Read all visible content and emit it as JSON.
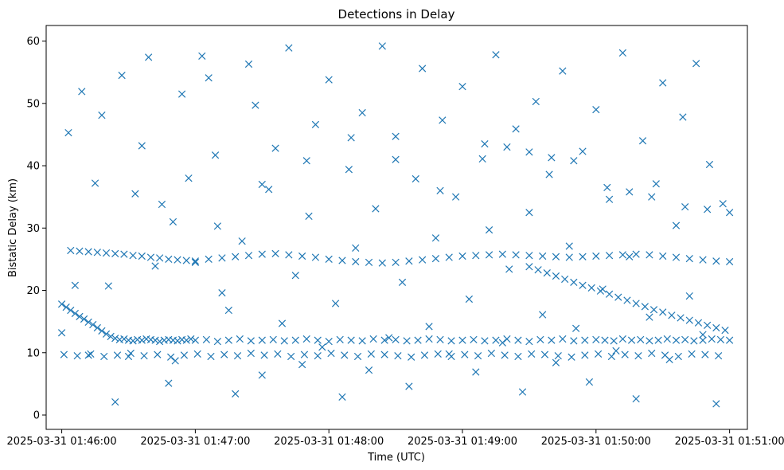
{
  "chart_data": {
    "type": "scatter",
    "title": "Detections in Delay",
    "xlabel": "Time (UTC)",
    "ylabel": "Bistatic Delay (km)",
    "x_ticks": [
      "2025-03-31 01:46:00",
      "2025-03-31 01:47:00",
      "2025-03-31 01:48:00",
      "2025-03-31 01:49:00",
      "2025-03-31 01:50:00",
      "2025-03-31 01:51:00"
    ],
    "y_ticks": [
      "0",
      "10",
      "20",
      "30",
      "40",
      "50",
      "60"
    ],
    "xlim": [
      "2025-03-31 01:45:53",
      "2025-03-31 01:51:08"
    ],
    "ylim": [
      -2.3,
      62.5
    ],
    "grid": false,
    "marker": "x",
    "color": "#1f77b4",
    "series": [
      {
        "x": [
          "2025-03-31 01:46:00",
          "2025-03-31 01:46:02",
          "2025-03-31 01:46:04",
          "2025-03-31 01:46:06",
          "2025-03-31 01:46:08",
          "2025-03-31 01:46:10",
          "2025-03-31 01:46:12",
          "2025-03-31 01:46:14",
          "2025-03-31 01:46:16",
          "2025-03-31 01:46:18",
          "2025-03-31 01:46:20",
          "2025-03-31 01:46:22",
          "2025-03-31 01:46:24",
          "2025-03-31 01:46:26",
          "2025-03-31 01:46:28",
          "2025-03-31 01:46:30",
          "2025-03-31 01:46:32",
          "2025-03-31 01:46:34",
          "2025-03-31 01:46:36",
          "2025-03-31 01:46:38",
          "2025-03-31 01:46:40",
          "2025-03-31 01:46:42",
          "2025-03-31 01:46:44",
          "2025-03-31 01:46:46",
          "2025-03-31 01:46:48",
          "2025-03-31 01:46:50",
          "2025-03-31 01:46:52",
          "2025-03-31 01:46:54",
          "2025-03-31 01:46:56",
          "2025-03-31 01:46:58",
          "2025-03-31 01:47:00",
          "2025-03-31 01:47:05",
          "2025-03-31 01:47:10",
          "2025-03-31 01:47:15",
          "2025-03-31 01:47:20",
          "2025-03-31 01:47:25",
          "2025-03-31 01:47:30",
          "2025-03-31 01:47:35",
          "2025-03-31 01:47:40",
          "2025-03-31 01:47:45",
          "2025-03-31 01:47:50",
          "2025-03-31 01:47:55",
          "2025-03-31 01:48:00",
          "2025-03-31 01:48:05",
          "2025-03-31 01:48:10",
          "2025-03-31 01:48:15",
          "2025-03-31 01:48:20",
          "2025-03-31 01:48:25",
          "2025-03-31 01:48:30",
          "2025-03-31 01:48:35",
          "2025-03-31 01:48:40",
          "2025-03-31 01:48:45",
          "2025-03-31 01:48:50",
          "2025-03-31 01:48:55",
          "2025-03-31 01:49:00",
          "2025-03-31 01:49:05",
          "2025-03-31 01:49:10",
          "2025-03-31 01:49:15",
          "2025-03-31 01:49:20",
          "2025-03-31 01:49:25",
          "2025-03-31 01:49:30",
          "2025-03-31 01:49:35",
          "2025-03-31 01:49:40",
          "2025-03-31 01:49:45",
          "2025-03-31 01:49:50",
          "2025-03-31 01:49:55",
          "2025-03-31 01:50:00",
          "2025-03-31 01:50:04",
          "2025-03-31 01:50:08",
          "2025-03-31 01:50:12",
          "2025-03-31 01:50:16",
          "2025-03-31 01:50:20",
          "2025-03-31 01:50:24",
          "2025-03-31 01:50:28",
          "2025-03-31 01:50:32",
          "2025-03-31 01:50:36",
          "2025-03-31 01:50:40",
          "2025-03-31 01:50:44",
          "2025-03-31 01:50:48",
          "2025-03-31 01:50:52",
          "2025-03-31 01:50:56",
          "2025-03-31 01:51:00"
        ],
        "y": [
          17.8,
          17.3,
          16.8,
          16.3,
          15.8,
          15.4,
          14.9,
          14.5,
          14.0,
          13.5,
          13.0,
          12.6,
          12.3,
          12.1,
          12.2,
          12.0,
          11.9,
          12.1,
          12.0,
          12.2,
          12.1,
          12.0,
          11.8,
          12.0,
          12.1,
          12.0,
          11.9,
          12.1,
          12.0,
          12.2,
          12.0,
          12.1,
          11.8,
          12.0,
          12.2,
          11.9,
          12.0,
          12.1,
          11.9,
          12.0,
          12.2,
          12.0,
          11.8,
          12.1,
          12.0,
          11.9,
          12.2,
          12.0,
          12.1,
          11.9,
          12.0,
          12.2,
          12.1,
          11.9,
          12.0,
          12.1,
          11.9,
          12.0,
          12.2,
          12.0,
          11.8,
          12.1,
          12.0,
          12.2,
          11.9,
          12.0,
          12.1,
          12.0,
          11.9,
          12.2,
          12.0,
          12.1,
          11.9,
          12.0,
          12.2,
          12.0,
          12.1,
          11.9,
          12.0,
          12.2,
          12.1,
          12.0
        ]
      },
      {
        "x": [
          "2025-03-31 01:46:04",
          "2025-03-31 01:46:08",
          "2025-03-31 01:46:12",
          "2025-03-31 01:46:16",
          "2025-03-31 01:46:20",
          "2025-03-31 01:46:24",
          "2025-03-31 01:46:28",
          "2025-03-31 01:46:32",
          "2025-03-31 01:46:36",
          "2025-03-31 01:46:40",
          "2025-03-31 01:46:44",
          "2025-03-31 01:46:48",
          "2025-03-31 01:46:52",
          "2025-03-31 01:46:56",
          "2025-03-31 01:47:00",
          "2025-03-31 01:47:06",
          "2025-03-31 01:47:12",
          "2025-03-31 01:47:18",
          "2025-03-31 01:47:24",
          "2025-03-31 01:47:30",
          "2025-03-31 01:47:36",
          "2025-03-31 01:47:42",
          "2025-03-31 01:47:48",
          "2025-03-31 01:47:54",
          "2025-03-31 01:48:00",
          "2025-03-31 01:48:06",
          "2025-03-31 01:48:12",
          "2025-03-31 01:48:18",
          "2025-03-31 01:48:24",
          "2025-03-31 01:48:30",
          "2025-03-31 01:48:36",
          "2025-03-31 01:48:42",
          "2025-03-31 01:48:48",
          "2025-03-31 01:48:54",
          "2025-03-31 01:49:00",
          "2025-03-31 01:49:06",
          "2025-03-31 01:49:12",
          "2025-03-31 01:49:18",
          "2025-03-31 01:49:24",
          "2025-03-31 01:49:30",
          "2025-03-31 01:49:36",
          "2025-03-31 01:49:42",
          "2025-03-31 01:49:48",
          "2025-03-31 01:49:54",
          "2025-03-31 01:50:00",
          "2025-03-31 01:50:06",
          "2025-03-31 01:50:12",
          "2025-03-31 01:50:18",
          "2025-03-31 01:50:24",
          "2025-03-31 01:50:30",
          "2025-03-31 01:50:36",
          "2025-03-31 01:50:42",
          "2025-03-31 01:50:48",
          "2025-03-31 01:50:54",
          "2025-03-31 01:51:00"
        ],
        "y": [
          26.4,
          26.3,
          26.2,
          26.1,
          26.0,
          25.9,
          25.8,
          25.6,
          25.5,
          25.3,
          25.2,
          25.0,
          24.9,
          24.8,
          24.7,
          25.0,
          25.2,
          25.4,
          25.6,
          25.8,
          25.9,
          25.7,
          25.5,
          25.3,
          25.0,
          24.8,
          24.6,
          24.5,
          24.4,
          24.5,
          24.7,
          24.9,
          25.1,
          25.3,
          25.5,
          25.6,
          25.7,
          25.8,
          25.7,
          25.6,
          25.5,
          25.4,
          25.3,
          25.4,
          25.5,
          25.6,
          25.7,
          25.8,
          25.7,
          25.5,
          25.3,
          25.1,
          24.9,
          24.7,
          24.6
        ]
      },
      {
        "x": [
          "2025-03-31 01:49:30",
          "2025-03-31 01:49:34",
          "2025-03-31 01:49:38",
          "2025-03-31 01:49:42",
          "2025-03-31 01:49:46",
          "2025-03-31 01:49:50",
          "2025-03-31 01:49:54",
          "2025-03-31 01:49:58",
          "2025-03-31 01:50:02",
          "2025-03-31 01:50:06",
          "2025-03-31 01:50:10",
          "2025-03-31 01:50:14",
          "2025-03-31 01:50:18",
          "2025-03-31 01:50:22",
          "2025-03-31 01:50:26",
          "2025-03-31 01:50:30",
          "2025-03-31 01:50:34",
          "2025-03-31 01:50:38",
          "2025-03-31 01:50:42",
          "2025-03-31 01:50:46",
          "2025-03-31 01:50:50",
          "2025-03-31 01:50:54",
          "2025-03-31 01:50:58"
        ],
        "y": [
          23.8,
          23.3,
          22.8,
          22.3,
          21.8,
          21.3,
          20.8,
          20.4,
          19.9,
          19.4,
          18.9,
          18.4,
          17.9,
          17.4,
          16.9,
          16.5,
          16.0,
          15.6,
          15.2,
          14.8,
          14.4,
          14.0,
          13.6
        ]
      },
      {
        "x": [
          "2025-03-31 01:46:50",
          "2025-03-31 01:47:10",
          "2025-03-31 01:47:30",
          "2025-03-31 01:47:50",
          "2025-03-31 01:48:10",
          "2025-03-31 01:48:30",
          "2025-03-31 01:48:50",
          "2025-03-31 01:49:10",
          "2025-03-31 01:49:20",
          "2025-03-31 01:49:30",
          "2025-03-31 01:49:40",
          "2025-03-31 01:49:50",
          "2025-03-31 01:50:05",
          "2025-03-31 01:50:15",
          "2025-03-31 01:50:25",
          "2025-03-31 01:50:40",
          "2025-03-31 01:50:50",
          "2025-03-31 01:51:00"
        ],
        "y": [
          31.0,
          30.3,
          37.0,
          40.8,
          44.5,
          41.0,
          36.0,
          43.5,
          43.0,
          42.2,
          41.3,
          40.8,
          36.5,
          35.8,
          35.0,
          33.4,
          33.0,
          32.5
        ]
      },
      {
        "x": [
          "2025-03-31 01:46:00",
          "2025-03-31 01:46:03",
          "2025-03-31 01:46:06",
          "2025-03-31 01:46:09",
          "2025-03-31 01:46:12",
          "2025-03-31 01:46:15",
          "2025-03-31 01:46:18",
          "2025-03-31 01:46:21",
          "2025-03-31 01:46:24",
          "2025-03-31 01:46:27",
          "2025-03-31 01:46:30",
          "2025-03-31 01:46:33",
          "2025-03-31 01:46:36",
          "2025-03-31 01:46:39",
          "2025-03-31 01:46:42",
          "2025-03-31 01:46:45",
          "2025-03-31 01:46:48",
          "2025-03-31 01:46:51",
          "2025-03-31 01:46:54",
          "2025-03-31 01:46:57",
          "2025-03-31 01:47:00",
          "2025-03-31 01:47:03",
          "2025-03-31 01:47:06",
          "2025-03-31 01:47:09",
          "2025-03-31 01:47:12",
          "2025-03-31 01:47:15",
          "2025-03-31 01:47:18",
          "2025-03-31 01:47:21",
          "2025-03-31 01:47:24",
          "2025-03-31 01:47:27",
          "2025-03-31 01:47:30",
          "2025-03-31 01:47:33",
          "2025-03-31 01:47:36",
          "2025-03-31 01:47:39",
          "2025-03-31 01:47:42",
          "2025-03-31 01:47:45",
          "2025-03-31 01:47:48",
          "2025-03-31 01:47:51",
          "2025-03-31 01:47:54",
          "2025-03-31 01:47:57",
          "2025-03-31 01:48:00",
          "2025-03-31 01:48:03",
          "2025-03-31 01:48:06",
          "2025-03-31 01:48:09",
          "2025-03-31 01:48:12",
          "2025-03-31 01:48:15",
          "2025-03-31 01:48:18",
          "2025-03-31 01:48:21",
          "2025-03-31 01:48:24",
          "2025-03-31 01:48:27",
          "2025-03-31 01:48:30",
          "2025-03-31 01:48:33",
          "2025-03-31 01:48:36",
          "2025-03-31 01:48:39",
          "2025-03-31 01:48:42",
          "2025-03-31 01:48:45",
          "2025-03-31 01:48:48",
          "2025-03-31 01:48:51",
          "2025-03-31 01:48:54",
          "2025-03-31 01:48:57",
          "2025-03-31 01:49:00",
          "2025-03-31 01:49:03",
          "2025-03-31 01:49:06",
          "2025-03-31 01:49:09",
          "2025-03-31 01:49:12",
          "2025-03-31 01:49:15",
          "2025-03-31 01:49:18",
          "2025-03-31 01:49:21",
          "2025-03-31 01:49:24",
          "2025-03-31 01:49:27",
          "2025-03-31 01:49:30",
          "2025-03-31 01:49:33",
          "2025-03-31 01:49:36",
          "2025-03-31 01:49:39",
          "2025-03-31 01:49:42",
          "2025-03-31 01:49:45",
          "2025-03-31 01:49:48",
          "2025-03-31 01:49:51",
          "2025-03-31 01:49:54",
          "2025-03-31 01:49:57",
          "2025-03-31 01:50:00",
          "2025-03-31 01:50:03",
          "2025-03-31 01:50:06",
          "2025-03-31 01:50:09",
          "2025-03-31 01:50:12",
          "2025-03-31 01:50:15",
          "2025-03-31 01:50:18",
          "2025-03-31 01:50:21",
          "2025-03-31 01:50:24",
          "2025-03-31 01:50:27",
          "2025-03-31 01:50:30",
          "2025-03-31 01:50:33",
          "2025-03-31 01:50:36",
          "2025-03-31 01:50:39",
          "2025-03-31 01:50:42",
          "2025-03-31 01:50:45",
          "2025-03-31 01:50:48",
          "2025-03-31 01:50:51",
          "2025-03-31 01:50:54",
          "2025-03-31 01:50:57"
        ],
        "y": [
          13.2,
          45.3,
          20.8,
          51.9,
          9.6,
          37.2,
          48.1,
          20.7,
          2.1,
          54.5,
          9.4,
          35.5,
          43.2,
          57.4,
          23.9,
          33.8,
          5.1,
          8.7,
          51.5,
          38.0,
          24.5,
          57.6,
          54.1,
          41.7,
          19.6,
          16.8,
          3.4,
          27.9,
          56.3,
          49.7,
          6.4,
          36.2,
          42.8,
          14.7,
          58.9,
          22.4,
          8.1,
          31.9,
          46.6,
          10.9,
          53.8,
          17.9,
          2.9,
          39.4,
          26.8,
          48.5,
          7.2,
          33.1,
          59.2,
          12.4,
          44.7,
          21.3,
          4.6,
          37.9,
          55.6,
          14.2,
          28.4,
          47.3,
          9.8,
          35.0,
          52.7,
          18.6,
          6.9,
          41.1,
          29.7,
          57.8,
          11.6,
          23.4,
          45.9,
          3.7,
          32.5,
          50.3,
          16.1,
          38.6,
          8.4,
          55.2,
          27.1,
          13.9,
          42.3,
          5.3,
          49.0,
          20.2,
          34.6,
          10.3,
          58.1,
          25.4,
          2.6,
          44.0,
          15.7,
          37.1,
          53.3,
          8.9,
          30.4,
          47.8,
          19.1,
          56.4,
          12.9,
          40.2,
          1.8,
          33.9
        ]
      },
      {
        "x": [
          "2025-03-31 01:46:01",
          "2025-03-31 01:46:07",
          "2025-03-31 01:46:13",
          "2025-03-31 01:46:19",
          "2025-03-31 01:46:25",
          "2025-03-31 01:46:31",
          "2025-03-31 01:46:37",
          "2025-03-31 01:46:43",
          "2025-03-31 01:46:49",
          "2025-03-31 01:46:55",
          "2025-03-31 01:47:01",
          "2025-03-31 01:47:07",
          "2025-03-31 01:47:13",
          "2025-03-31 01:47:19",
          "2025-03-31 01:47:25",
          "2025-03-31 01:47:31",
          "2025-03-31 01:47:37",
          "2025-03-31 01:47:43",
          "2025-03-31 01:47:49",
          "2025-03-31 01:47:55",
          "2025-03-31 01:48:01",
          "2025-03-31 01:48:07",
          "2025-03-31 01:48:13",
          "2025-03-31 01:48:19",
          "2025-03-31 01:48:25",
          "2025-03-31 01:48:31",
          "2025-03-31 01:48:37",
          "2025-03-31 01:48:43",
          "2025-03-31 01:48:49",
          "2025-03-31 01:48:55",
          "2025-03-31 01:49:01",
          "2025-03-31 01:49:07",
          "2025-03-31 01:49:13",
          "2025-03-31 01:49:19",
          "2025-03-31 01:49:25",
          "2025-03-31 01:49:31",
          "2025-03-31 01:49:37",
          "2025-03-31 01:49:43",
          "2025-03-31 01:49:49",
          "2025-03-31 01:49:55",
          "2025-03-31 01:50:01",
          "2025-03-31 01:50:07",
          "2025-03-31 01:50:13",
          "2025-03-31 01:50:19",
          "2025-03-31 01:50:25",
          "2025-03-31 01:50:31",
          "2025-03-31 01:50:37",
          "2025-03-31 01:50:43",
          "2025-03-31 01:50:49",
          "2025-03-31 01:50:55"
        ],
        "y": [
          9.7,
          9.5,
          9.8,
          9.4,
          9.6,
          9.9,
          9.5,
          9.7,
          9.3,
          9.6,
          9.8,
          9.4,
          9.7,
          9.5,
          9.9,
          9.6,
          9.8,
          9.4,
          9.7,
          9.5,
          9.9,
          9.6,
          9.4,
          9.8,
          9.7,
          9.5,
          9.3,
          9.6,
          9.8,
          9.4,
          9.7,
          9.5,
          9.9,
          9.6,
          9.4,
          9.8,
          9.7,
          9.5,
          9.3,
          9.6,
          9.8,
          9.4,
          9.7,
          9.5,
          9.9,
          9.6,
          9.4,
          9.8,
          9.7,
          9.5
        ]
      }
    ]
  }
}
